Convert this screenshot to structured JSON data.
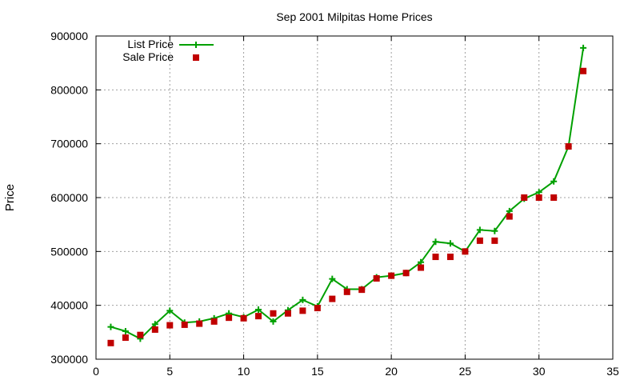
{
  "chart_data": {
    "type": "line",
    "title": "Sep 2001 Milpitas Home Prices",
    "xlabel": "",
    "ylabel": "Price",
    "xlim": [
      0,
      35
    ],
    "ylim": [
      300000,
      900000
    ],
    "xticks": [
      0,
      5,
      10,
      15,
      20,
      25,
      30,
      35
    ],
    "yticks": [
      300000,
      400000,
      500000,
      600000,
      700000,
      800000,
      900000
    ],
    "grid": true,
    "legend_position": "top-left",
    "series": [
      {
        "name": "List Price",
        "style": "line-plus",
        "color": "#00a000",
        "x": [
          1,
          2,
          3,
          4,
          5,
          6,
          7,
          8,
          9,
          10,
          11,
          12,
          13,
          14,
          15,
          16,
          17,
          18,
          19,
          20,
          21,
          22,
          23,
          24,
          25,
          26,
          27,
          28,
          29,
          30,
          31,
          32,
          33
        ],
        "y": [
          360000,
          352000,
          338000,
          365000,
          390000,
          368000,
          370000,
          376000,
          385000,
          378000,
          392000,
          370000,
          391000,
          410000,
          398000,
          449000,
          430000,
          430000,
          452000,
          455000,
          460000,
          480000,
          518000,
          515000,
          500000,
          540000,
          538000,
          575000,
          598000,
          610000,
          630000,
          695000,
          878000
        ]
      },
      {
        "name": "Sale Price",
        "style": "points-square",
        "color": "#c00000",
        "x": [
          1,
          2,
          3,
          4,
          5,
          6,
          7,
          8,
          9,
          10,
          11,
          12,
          13,
          14,
          15,
          16,
          17,
          18,
          19,
          20,
          21,
          22,
          23,
          24,
          25,
          26,
          27,
          28,
          29,
          30,
          31,
          32,
          33
        ],
        "y": [
          330000,
          340000,
          345000,
          355000,
          363000,
          364000,
          366000,
          370000,
          377000,
          376000,
          380000,
          385000,
          385000,
          390000,
          395000,
          412000,
          425000,
          429000,
          450000,
          455000,
          460000,
          470000,
          490000,
          490000,
          500000,
          520000,
          520000,
          565000,
          600000,
          600000,
          600000,
          695000,
          835000
        ]
      }
    ]
  }
}
